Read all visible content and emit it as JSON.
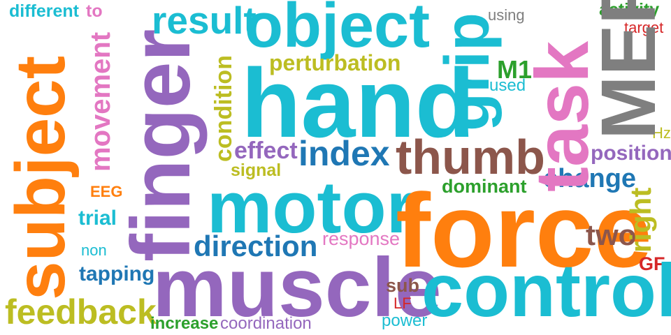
{
  "palette": {
    "teal": "#1bbdd2",
    "orange": "#ff7f0e",
    "purple": "#9467bd",
    "pink": "#e377c2",
    "olive": "#bcbd22",
    "gray": "#7f7f7f",
    "brown": "#8c564b",
    "blue": "#1f77b4",
    "green": "#2ca02c",
    "red": "#d62728"
  },
  "words": {
    "different": "different",
    "to": "to",
    "result": "result",
    "object": "object",
    "using": "using",
    "activity": "activity",
    "target": "target",
    "movement": "movement",
    "subject": "subject",
    "finger": "finger",
    "hand": "hand",
    "perturbation": "perturbation",
    "grip": "grip",
    "task": "task",
    "mep": "MEP",
    "m1": "M1",
    "used": "used",
    "condition": "condition",
    "hz": "Hz",
    "effect": "effect",
    "index": "index",
    "thumb": "thumb",
    "position": "position",
    "signal": "signal",
    "change": "change",
    "eeg": "EEG",
    "motor": "motor",
    "dominant": "dominant",
    "force": "force",
    "right": "right",
    "trial": "trial",
    "response": "response",
    "two": "two",
    "non": "non",
    "direction": "direction",
    "tapping": "tapping",
    "muscle": "muscle",
    "control": "control",
    "gf": "GF",
    "sub": "sub",
    "lf": "LF",
    "feedback": "feedback",
    "increase": "increase",
    "coordination": "coordination",
    "power": "power"
  }
}
